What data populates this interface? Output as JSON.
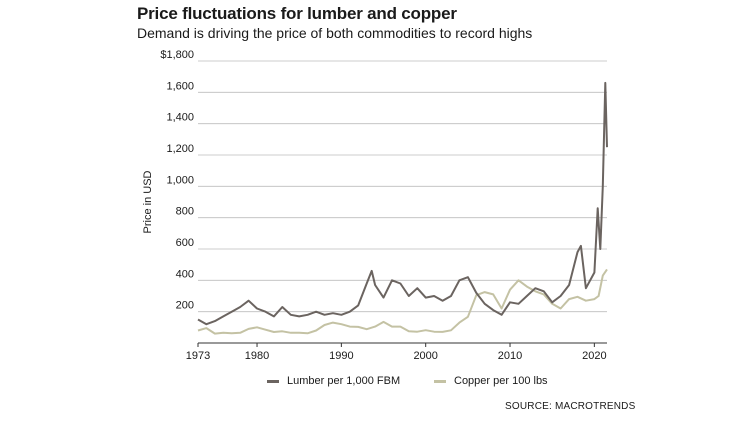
{
  "chart_data": {
    "type": "line",
    "title": "Price fluctuations for lumber and copper",
    "subtitle": "Demand is driving the price of both commodities to record highs",
    "xlabel": "",
    "ylabel": "Price in USD",
    "xlim": [
      1973,
      2021.5
    ],
    "ylim": [
      0,
      1800
    ],
    "x_ticks": [
      1973,
      1980,
      1990,
      2000,
      2010,
      2020
    ],
    "y_ticks": [
      200,
      400,
      600,
      800,
      1000,
      1200,
      1400,
      1600,
      1800
    ],
    "y_tick_labels": [
      "200",
      "400",
      "600",
      "800",
      "1,000",
      "1,200",
      "1,400",
      "1,600",
      "$1,800"
    ],
    "grid": "horizontal",
    "legend_position": "bottom",
    "source": "SOURCE: MACROTRENDS",
    "series": [
      {
        "name": "Lumber per 1,000 FBM",
        "color": "#6b6460",
        "x": [
          1973,
          1974,
          1975,
          1976,
          1977,
          1978,
          1979,
          1980,
          1981,
          1982,
          1983,
          1984,
          1985,
          1986,
          1987,
          1988,
          1989,
          1990,
          1991,
          1992,
          1993,
          1993.6,
          1994,
          1995,
          1996,
          1997,
          1998,
          1999,
          2000,
          2001,
          2002,
          2003,
          2004,
          2005,
          2006,
          2007,
          2008,
          2009,
          2010,
          2011,
          2012,
          2013,
          2014,
          2015,
          2016,
          2017,
          2018,
          2018.4,
          2019,
          2020,
          2020.4,
          2020.7,
          2021,
          2021.3,
          2021.5
        ],
        "values": [
          150,
          120,
          140,
          170,
          200,
          230,
          270,
          220,
          200,
          170,
          230,
          180,
          170,
          180,
          200,
          180,
          190,
          180,
          200,
          240,
          380,
          460,
          370,
          290,
          400,
          380,
          300,
          350,
          290,
          300,
          270,
          300,
          400,
          420,
          320,
          250,
          210,
          180,
          260,
          250,
          300,
          350,
          330,
          260,
          300,
          370,
          580,
          620,
          350,
          450,
          860,
          600,
          1000,
          1660,
          1250
        ]
      },
      {
        "name": "Copper per 100 lbs",
        "color": "#c4c2a4",
        "x": [
          1973,
          1974,
          1975,
          1976,
          1977,
          1978,
          1979,
          1980,
          1981,
          1982,
          1983,
          1984,
          1985,
          1986,
          1987,
          1988,
          1989,
          1990,
          1991,
          1992,
          1993,
          1994,
          1995,
          1996,
          1997,
          1998,
          1999,
          2000,
          2001,
          2002,
          2003,
          2004,
          2005,
          2006,
          2007,
          2008,
          2009,
          2010,
          2011,
          2012,
          2013,
          2014,
          2015,
          2016,
          2017,
          2018,
          2019,
          2020,
          2020.5,
          2021,
          2021.5
        ],
        "values": [
          80,
          95,
          60,
          65,
          62,
          65,
          90,
          100,
          85,
          70,
          75,
          65,
          65,
          62,
          80,
          115,
          130,
          120,
          105,
          103,
          88,
          105,
          135,
          105,
          105,
          75,
          72,
          82,
          72,
          71,
          81,
          130,
          167,
          305,
          325,
          310,
          220,
          340,
          400,
          360,
          330,
          310,
          250,
          220,
          280,
          295,
          270,
          280,
          300,
          430,
          470
        ]
      }
    ]
  }
}
